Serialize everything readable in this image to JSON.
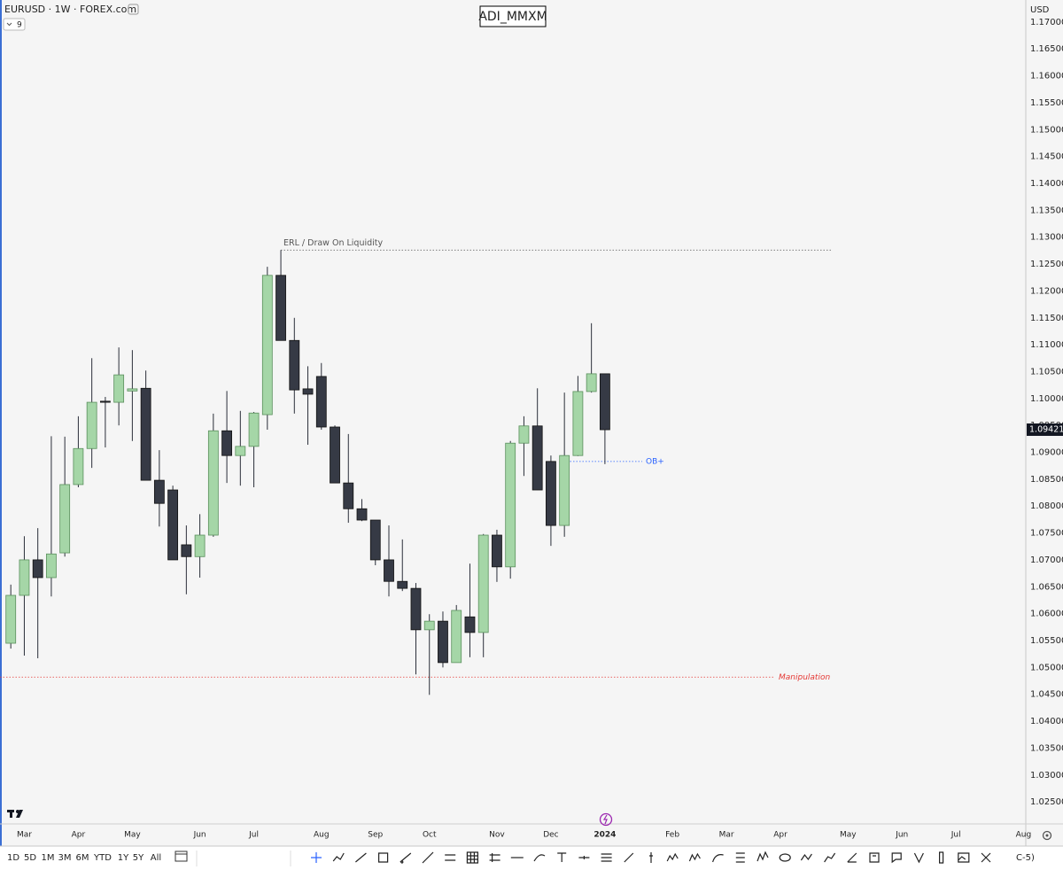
{
  "chart_data": {
    "type": "candlestick",
    "title": "ADI_MMXM",
    "symbol": "EURUSD · 1W · FOREX.com",
    "indicator_count": 9,
    "currency": "USD",
    "x": [
      9,
      10,
      11,
      12,
      13,
      14,
      15,
      16,
      17,
      18,
      19,
      20,
      21,
      22,
      23,
      24,
      25,
      26,
      27,
      28,
      29,
      30,
      31,
      32,
      33,
      34,
      35,
      36,
      37,
      38,
      39,
      40,
      41,
      42,
      43,
      44,
      45,
      46,
      47,
      48,
      49,
      50,
      51,
      52,
      53
    ],
    "open": [
      1.0545,
      1.0634,
      1.07,
      1.0667,
      1.0713,
      1.084,
      1.0907,
      1.0995,
      1.0993,
      1.1014,
      1.1019,
      1.0848,
      1.083,
      1.0728,
      1.0706,
      1.0746,
      1.094,
      1.0894,
      1.0911,
      1.097,
      1.1229,
      1.1108,
      1.1018,
      1.1041,
      1.0947,
      1.0843,
      1.0795,
      1.0774,
      1.07,
      1.066,
      1.0647,
      1.057,
      1.0586,
      1.0509,
      1.0594,
      1.0565,
      1.0746,
      1.0687,
      1.0917,
      1.0949,
      1.0883,
      1.0764,
      1.0894,
      1.1013,
      1.1046
    ],
    "high": [
      1.0654,
      1.0744,
      1.0759,
      1.093,
      1.0929,
      1.0967,
      1.1075,
      1.1003,
      1.1095,
      1.109,
      1.1052,
      1.0904,
      1.0838,
      1.0764,
      1.0785,
      1.0972,
      1.1014,
      1.0977,
      1.0975,
      1.1245,
      1.1276,
      1.115,
      1.106,
      1.1066,
      1.095,
      1.0934,
      1.0813,
      1.0774,
      1.0764,
      1.0738,
      1.0657,
      1.0599,
      1.0604,
      1.0616,
      1.0693,
      1.0748,
      1.0756,
      1.0921,
      1.0967,
      1.1019,
      1.0894,
      1.1011,
      1.1042,
      1.114,
      1.1046
    ],
    "low": [
      1.0535,
      1.0522,
      1.0517,
      1.0632,
      1.0706,
      1.0835,
      1.0871,
      1.0909,
      1.095,
      1.0921,
      1.0848,
      1.0762,
      1.07,
      1.0636,
      1.0667,
      1.0743,
      1.0843,
      1.0838,
      1.0835,
      1.0942,
      1.1108,
      1.0972,
      1.0914,
      1.0942,
      1.0843,
      1.0769,
      1.0772,
      1.069,
      1.0632,
      1.0642,
      1.0487,
      1.0449,
      1.05,
      1.0509,
      1.0519,
      1.0519,
      1.0659,
      1.0665,
      1.0856,
      1.083,
      1.0726,
      1.0743,
      1.0893,
      1.1011,
      1.0878
    ],
    "close": [
      1.0634,
      1.07,
      1.0667,
      1.0711,
      1.084,
      1.0907,
      1.0993,
      1.0993,
      1.1044,
      1.1018,
      1.0848,
      1.0805,
      1.07,
      1.0706,
      1.0746,
      1.094,
      1.0894,
      1.0911,
      1.0973,
      1.1229,
      1.1108,
      1.1016,
      1.1008,
      1.0947,
      1.0843,
      1.0795,
      1.0774,
      1.07,
      1.066,
      1.0647,
      1.057,
      1.0586,
      1.0509,
      1.0606,
      1.0565,
      1.0746,
      1.0687,
      1.0917,
      1.0949,
      1.083,
      1.0764,
      1.0894,
      1.1013,
      1.1046,
      1.0942
    ],
    "up_color": "#a5d6a7",
    "down_color": "#363a45",
    "xlim": [
      8.2,
      84.3
    ],
    "xticks": [
      {
        "value": 10,
        "label": "Mar"
      },
      {
        "value": 14,
        "label": "Apr"
      },
      {
        "value": 18,
        "label": "May"
      },
      {
        "value": 23,
        "label": "Jun"
      },
      {
        "value": 27,
        "label": "Jul"
      },
      {
        "value": 32,
        "label": "Aug"
      },
      {
        "value": 36,
        "label": "Sep"
      },
      {
        "value": 40,
        "label": "Oct"
      },
      {
        "value": 45,
        "label": "Nov"
      },
      {
        "value": 49,
        "label": "Dec"
      },
      {
        "value": 53,
        "label": "2024"
      },
      {
        "value": 58,
        "label": "Feb"
      },
      {
        "value": 62,
        "label": "Mar"
      },
      {
        "value": 66,
        "label": "Apr"
      },
      {
        "value": 71,
        "label": "May"
      },
      {
        "value": 75,
        "label": "Jun"
      },
      {
        "value": 79,
        "label": "Jul"
      },
      {
        "value": 84,
        "label": "Aug"
      }
    ],
    "ylim": [
      1.0209,
      1.1741
    ],
    "yticks": [
      {
        "value": 1.025,
        "label": "1.02500"
      },
      {
        "value": 1.03,
        "label": "1.03000"
      },
      {
        "value": 1.035,
        "label": "1.03500"
      },
      {
        "value": 1.04,
        "label": "1.04000"
      },
      {
        "value": 1.045,
        "label": "1.04500"
      },
      {
        "value": 1.05,
        "label": "1.05000"
      },
      {
        "value": 1.055,
        "label": "1.05500"
      },
      {
        "value": 1.06,
        "label": "1.06000"
      },
      {
        "value": 1.065,
        "label": "1.06500"
      },
      {
        "value": 1.07,
        "label": "1.07000"
      },
      {
        "value": 1.075,
        "label": "1.07500"
      },
      {
        "value": 1.08,
        "label": "1.08000"
      },
      {
        "value": 1.085,
        "label": "1.08500"
      },
      {
        "value": 1.09,
        "label": "1.09000"
      },
      {
        "value": 1.095,
        "label": "1.09500"
      },
      {
        "value": 1.1,
        "label": "1.10000"
      },
      {
        "value": 1.105,
        "label": "1.10500"
      },
      {
        "value": 1.11,
        "label": "1.11000"
      },
      {
        "value": 1.115,
        "label": "1.11500"
      },
      {
        "value": 1.12,
        "label": "1.12000"
      },
      {
        "value": 1.125,
        "label": "1.12500"
      },
      {
        "value": 1.13,
        "label": "1.13000"
      },
      {
        "value": 1.135,
        "label": "1.13500"
      },
      {
        "value": 1.14,
        "label": "1.14000"
      },
      {
        "value": 1.145,
        "label": "1.14500"
      },
      {
        "value": 1.15,
        "label": "1.15000"
      },
      {
        "value": 1.155,
        "label": "1.15500"
      },
      {
        "value": 1.16,
        "label": "1.16000"
      },
      {
        "value": 1.165,
        "label": "1.16500"
      },
      {
        "value": 1.17,
        "label": "1.17000"
      }
    ],
    "grid": false,
    "last_price": 1.09421,
    "annotations": [
      {
        "text": "ERL / Draw On Liquidity",
        "price": 1.1276,
        "color": "#555555"
      },
      {
        "text": "OB+",
        "price": 1.0883,
        "color": "#2962ff"
      },
      {
        "text": "Manipulation",
        "price": 1.0482,
        "color": "#e53935"
      }
    ]
  },
  "toolbar": {
    "timeframes": [
      "1D",
      "5D",
      "1M",
      "3M",
      "6M",
      "YTD",
      "1Y",
      "5Y",
      "All"
    ],
    "timezone": "C-5)"
  }
}
